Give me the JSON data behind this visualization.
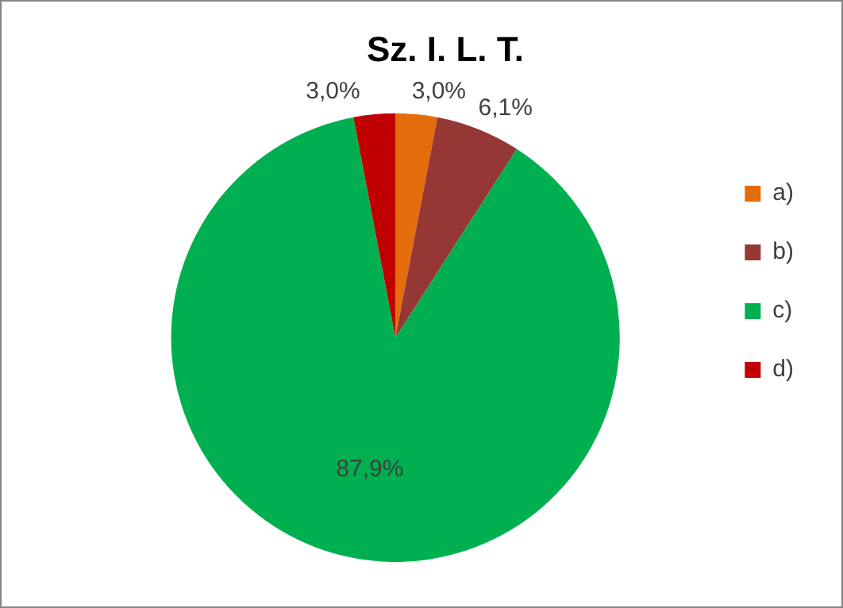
{
  "chart_data": {
    "type": "pie",
    "title": "Sz. I. L. T.",
    "categories": [
      "a)",
      "b)",
      "c)",
      "d)"
    ],
    "values": [
      3.0,
      6.1,
      87.9,
      3.0
    ],
    "colors": [
      "#e46c0a",
      "#953735",
      "#00b050",
      "#c00000"
    ],
    "value_labels": [
      "3,0%",
      "6,1%",
      "87,9%",
      "3,0%"
    ],
    "legend": "right"
  }
}
